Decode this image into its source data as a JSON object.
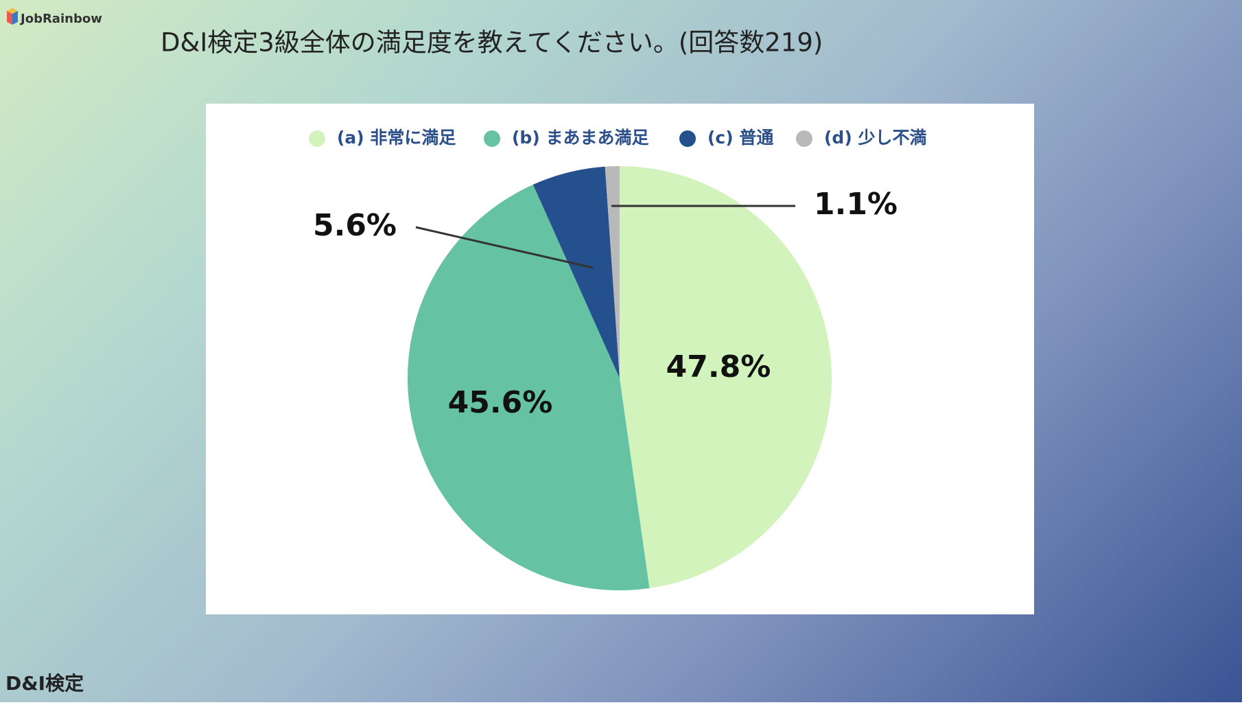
{
  "brand": "JobRainbow",
  "footer": "D&I検定",
  "chart_data": {
    "type": "pie",
    "title": "D&I検定3級全体の満足度を教えてください。(回答数219)",
    "categories": [
      "(a) 非常に満足",
      "(b) まあまあ満足",
      "(c) 普通",
      "(d) 少し不満"
    ],
    "values": [
      47.8,
      45.6,
      5.6,
      1.1
    ],
    "value_labels": [
      "47.8%",
      "45.6%",
      "5.6%",
      "1.1%"
    ],
    "colors": [
      "#d2f3bb",
      "#65c3a3",
      "#24508d",
      "#b9b9b9"
    ],
    "legend": "top"
  }
}
